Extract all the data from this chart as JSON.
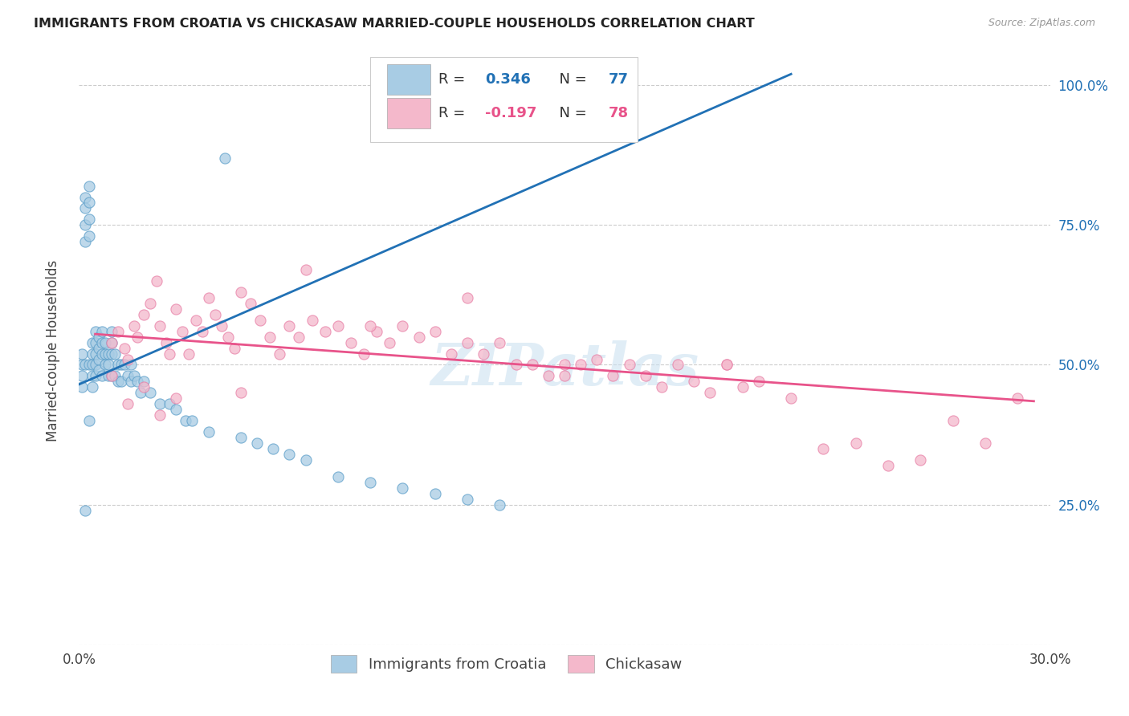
{
  "title": "IMMIGRANTS FROM CROATIA VS CHICKASAW MARRIED-COUPLE HOUSEHOLDS CORRELATION CHART",
  "source": "Source: ZipAtlas.com",
  "ylabel": "Married-couple Households",
  "xlim": [
    0.0,
    0.3
  ],
  "ylim": [
    0.0,
    1.05
  ],
  "ytick_values": [
    0.0,
    0.25,
    0.5,
    0.75,
    1.0
  ],
  "xtick_values": [
    0.0,
    0.05,
    0.1,
    0.15,
    0.2,
    0.25,
    0.3
  ],
  "legend_blue_label": "Immigrants from Croatia",
  "legend_pink_label": "Chickasaw",
  "blue_R": 0.346,
  "blue_N": 77,
  "pink_R": -0.197,
  "pink_N": 78,
  "blue_color": "#a8cce4",
  "pink_color": "#f4b8cb",
  "blue_edge_color": "#5b9ec9",
  "pink_edge_color": "#e87fa6",
  "blue_line_color": "#2171b5",
  "pink_line_color": "#e8538a",
  "watermark": "ZIPatlas",
  "watermark_color": "#c8dff0",
  "background_color": "#ffffff",
  "grid_color": "#cccccc",
  "blue_x": [
    0.001,
    0.001,
    0.001,
    0.001,
    0.002,
    0.002,
    0.002,
    0.002,
    0.002,
    0.003,
    0.003,
    0.003,
    0.003,
    0.003,
    0.004,
    0.004,
    0.004,
    0.004,
    0.004,
    0.005,
    0.005,
    0.005,
    0.005,
    0.005,
    0.006,
    0.006,
    0.006,
    0.006,
    0.007,
    0.007,
    0.007,
    0.007,
    0.008,
    0.008,
    0.008,
    0.009,
    0.009,
    0.009,
    0.01,
    0.01,
    0.01,
    0.01,
    0.011,
    0.011,
    0.012,
    0.012,
    0.013,
    0.013,
    0.014,
    0.015,
    0.016,
    0.016,
    0.017,
    0.018,
    0.019,
    0.02,
    0.022,
    0.025,
    0.028,
    0.03,
    0.033,
    0.035,
    0.04,
    0.045,
    0.05,
    0.055,
    0.06,
    0.065,
    0.07,
    0.08,
    0.09,
    0.1,
    0.11,
    0.12,
    0.13,
    0.002,
    0.003
  ],
  "blue_y": [
    0.5,
    0.52,
    0.48,
    0.46,
    0.8,
    0.78,
    0.75,
    0.72,
    0.5,
    0.82,
    0.79,
    0.76,
    0.73,
    0.5,
    0.54,
    0.52,
    0.5,
    0.48,
    0.46,
    0.56,
    0.54,
    0.52,
    0.5,
    0.48,
    0.55,
    0.53,
    0.51,
    0.49,
    0.56,
    0.54,
    0.52,
    0.48,
    0.54,
    0.52,
    0.5,
    0.52,
    0.5,
    0.48,
    0.56,
    0.54,
    0.52,
    0.48,
    0.52,
    0.48,
    0.5,
    0.47,
    0.5,
    0.47,
    0.5,
    0.48,
    0.5,
    0.47,
    0.48,
    0.47,
    0.45,
    0.47,
    0.45,
    0.43,
    0.43,
    0.42,
    0.4,
    0.4,
    0.38,
    0.87,
    0.37,
    0.36,
    0.35,
    0.34,
    0.33,
    0.3,
    0.29,
    0.28,
    0.27,
    0.26,
    0.25,
    0.24,
    0.4
  ],
  "pink_x": [
    0.01,
    0.012,
    0.014,
    0.015,
    0.017,
    0.018,
    0.02,
    0.022,
    0.024,
    0.025,
    0.027,
    0.028,
    0.03,
    0.032,
    0.034,
    0.036,
    0.038,
    0.04,
    0.042,
    0.044,
    0.046,
    0.048,
    0.05,
    0.053,
    0.056,
    0.059,
    0.062,
    0.065,
    0.068,
    0.072,
    0.076,
    0.08,
    0.084,
    0.088,
    0.092,
    0.096,
    0.1,
    0.105,
    0.11,
    0.115,
    0.12,
    0.125,
    0.13,
    0.135,
    0.14,
    0.145,
    0.15,
    0.155,
    0.16,
    0.165,
    0.17,
    0.175,
    0.18,
    0.185,
    0.19,
    0.195,
    0.2,
    0.205,
    0.21,
    0.22,
    0.23,
    0.24,
    0.25,
    0.26,
    0.27,
    0.28,
    0.29,
    0.01,
    0.015,
    0.02,
    0.025,
    0.03,
    0.05,
    0.07,
    0.09,
    0.12,
    0.15,
    0.2
  ],
  "pink_y": [
    0.54,
    0.56,
    0.53,
    0.51,
    0.57,
    0.55,
    0.59,
    0.61,
    0.65,
    0.57,
    0.54,
    0.52,
    0.6,
    0.56,
    0.52,
    0.58,
    0.56,
    0.62,
    0.59,
    0.57,
    0.55,
    0.53,
    0.63,
    0.61,
    0.58,
    0.55,
    0.52,
    0.57,
    0.55,
    0.58,
    0.56,
    0.57,
    0.54,
    0.52,
    0.56,
    0.54,
    0.57,
    0.55,
    0.56,
    0.52,
    0.54,
    0.52,
    0.54,
    0.5,
    0.5,
    0.48,
    0.5,
    0.5,
    0.51,
    0.48,
    0.5,
    0.48,
    0.46,
    0.5,
    0.47,
    0.45,
    0.5,
    0.46,
    0.47,
    0.44,
    0.35,
    0.36,
    0.32,
    0.33,
    0.4,
    0.36,
    0.44,
    0.48,
    0.43,
    0.46,
    0.41,
    0.44,
    0.45,
    0.67,
    0.57,
    0.62,
    0.48,
    0.5
  ],
  "blue_line_x": [
    0.0,
    0.22
  ],
  "blue_line_y": [
    0.465,
    1.02
  ],
  "pink_line_x": [
    0.005,
    0.295
  ],
  "pink_line_y": [
    0.555,
    0.435
  ]
}
